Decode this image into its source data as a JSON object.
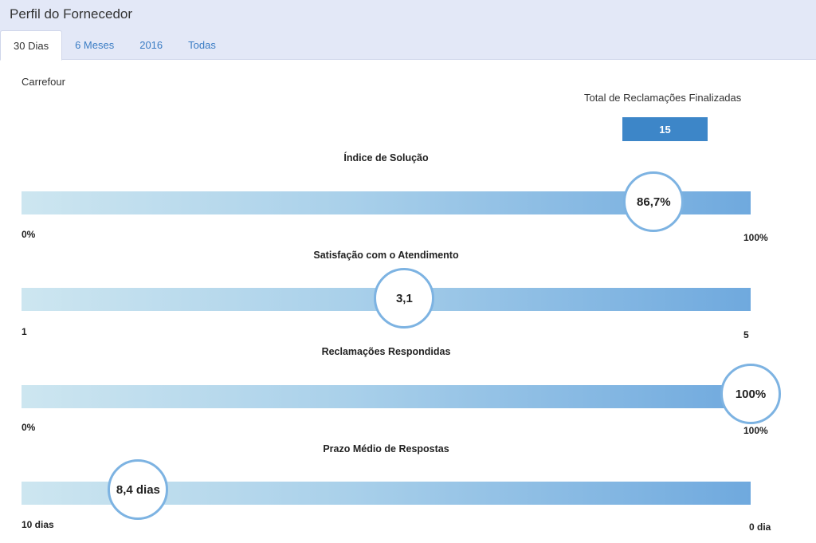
{
  "header": {
    "title": "Perfil do Fornecedor",
    "tabs": [
      {
        "label": "30 Dias",
        "active": true
      },
      {
        "label": "6 Meses",
        "active": false
      },
      {
        "label": "2016",
        "active": false
      },
      {
        "label": "Todas",
        "active": false
      }
    ]
  },
  "company": "Carrefour",
  "total": {
    "label": "Total de Reclamações Finalizadas",
    "value": "15"
  },
  "metrics": [
    {
      "title": "Índice de Solução",
      "value": "86,7%",
      "fraction": 0.867,
      "min_label": "0%",
      "max_label": "100%"
    },
    {
      "title": "Satisfação com o Atendimento",
      "value": "3,1",
      "fraction": 0.525,
      "min_label": "1",
      "max_label": "5"
    },
    {
      "title": "Reclamações Respondidas",
      "value": "100%",
      "fraction": 1.0,
      "min_label": "0%",
      "max_label": "100%"
    },
    {
      "title": "Prazo Médio de Respostas",
      "value": "8,4 dias",
      "fraction": 0.16,
      "min_label": "10 dias",
      "max_label": "0 dia"
    }
  ],
  "colors": {
    "accent": "#3d86c8",
    "bubble_border": "#7db3e2",
    "bar_start": "#cde6f0",
    "bar_end": "#6fa9de"
  }
}
